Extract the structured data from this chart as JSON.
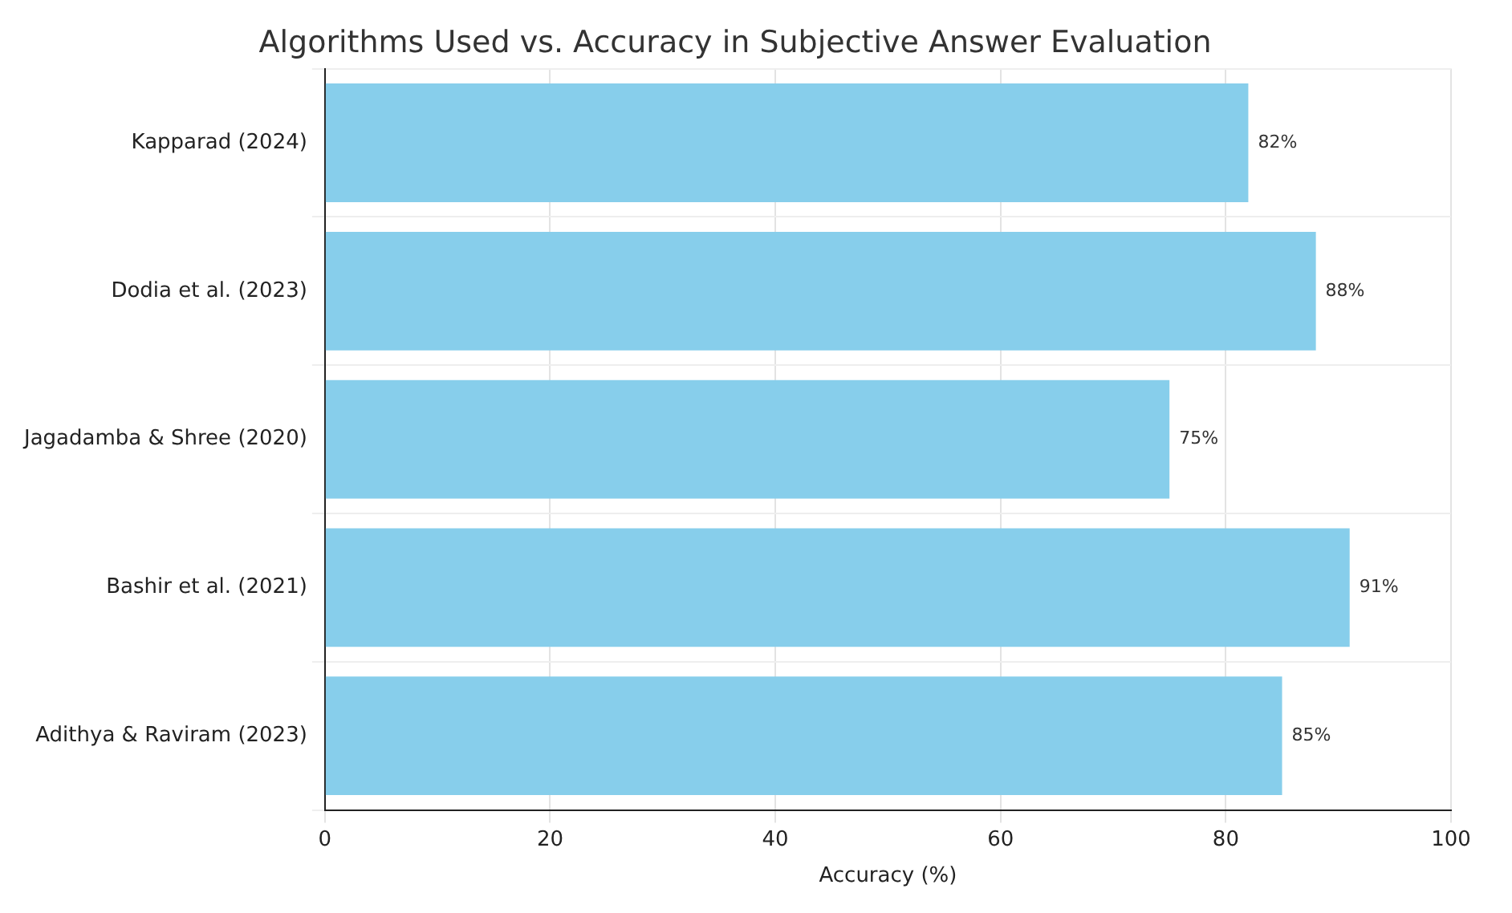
{
  "chart_data": {
    "type": "bar",
    "orientation": "horizontal",
    "title": "Algorithms Used vs. Accuracy in Subjective Answer Evaluation",
    "xlabel": "Accuracy (%)",
    "categories": [
      "Kapparad (2024)",
      "Dodia et al. (2023)",
      "Jagadamba & Shree (2020)",
      "Bashir et al. (2021)",
      "Adithya & Raviram (2023)"
    ],
    "values": [
      82,
      88,
      75,
      91,
      85
    ],
    "value_labels": [
      "82%",
      "88%",
      "75%",
      "91%",
      "85%"
    ],
    "color": "#87ceeb",
    "xlim": [
      0,
      100
    ],
    "xticks": [
      0,
      20,
      40,
      60,
      80,
      100
    ],
    "grid": true
  }
}
